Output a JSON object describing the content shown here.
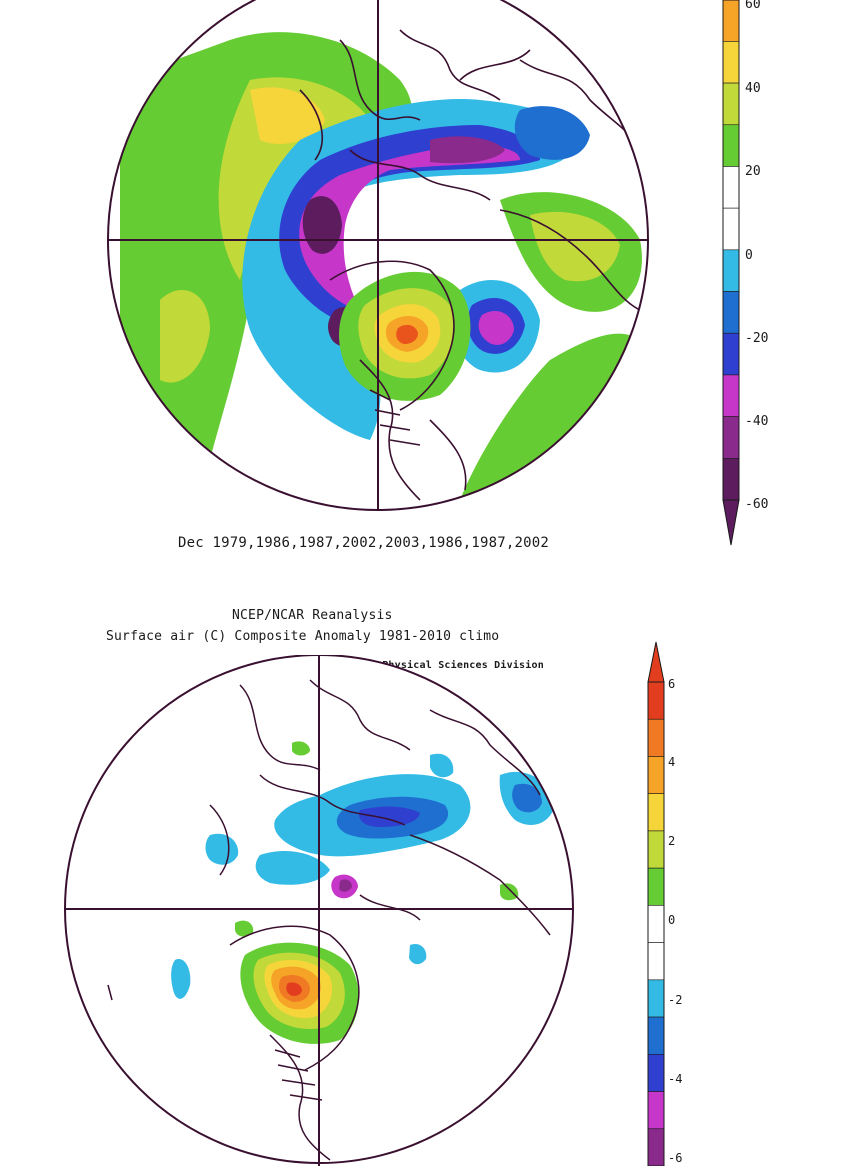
{
  "top_panel": {
    "caption": "Dec 1979,1986,1987,2002,2003,1986,1987,2002",
    "colorbar": {
      "labels": [
        "60",
        "40",
        "20",
        "0",
        "-20",
        "-40",
        "-60"
      ],
      "colors": [
        "#e8541c",
        "#f6a428",
        "#f6d53a",
        "#c2d93a",
        "#66cc33",
        "#ffffff",
        "#ffffff",
        "#33bbe6",
        "#1f6fd0",
        "#2f3fcf",
        "#c637c9",
        "#8a2a8c",
        "#5c1c5e"
      ]
    }
  },
  "bottom_panel": {
    "title_line1": "NCEP/NCAR Reanalysis",
    "title_line2": "Surface air (C) Composite Anomaly 1981-2010 climo",
    "credit": "NOAA/ESRL Physical Sciences Division",
    "colorbar": {
      "labels": [
        "6",
        "4",
        "2",
        "0",
        "-2",
        "-4",
        "-6"
      ],
      "colors": [
        "#e33d1f",
        "#f07a24",
        "#f6a428",
        "#f6d53a",
        "#c2d93a",
        "#66cc33",
        "#ffffff",
        "#ffffff",
        "#33bbe6",
        "#1f6fd0",
        "#2f3fcf",
        "#c637c9",
        "#8a2a8c"
      ]
    }
  }
}
